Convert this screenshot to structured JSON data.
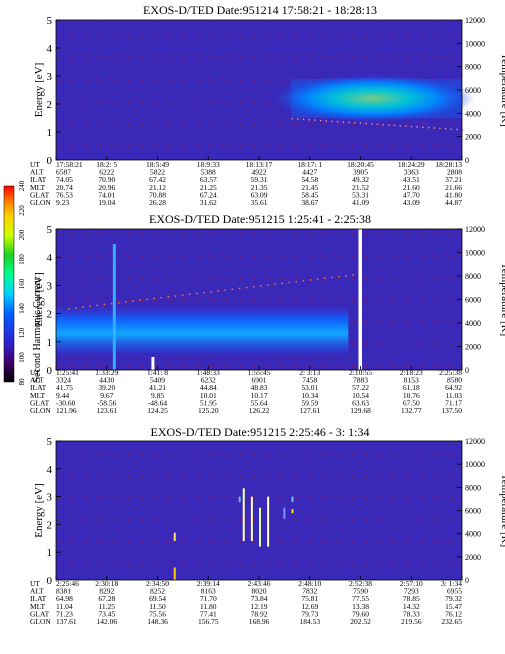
{
  "colorbar": {
    "label": "Second Harmonic Current",
    "ticks": [
      "80",
      "100",
      "120",
      "140",
      "160",
      "180",
      "200",
      "220",
      "240"
    ]
  },
  "chart_data": [
    {
      "type": "heatmap",
      "title": "EXOS-D/TED   Date:951214  17:58:21 - 18:28:13",
      "ylabel": "Energy [eV]",
      "ylabel_right": "Temperature [K]",
      "ylim": [
        0,
        5
      ],
      "y2lim": [
        0,
        12000
      ],
      "yticks": [
        "0",
        "1",
        "2",
        "3",
        "4",
        "5"
      ],
      "y2ticks": [
        "0",
        "2000",
        "4000",
        "6000",
        "8000",
        "10000",
        "12000"
      ],
      "rows": [
        {
          "label": "UT",
          "values": [
            "17:58:21",
            "18:2: 5",
            "18:5:49",
            "18:9:33",
            "18:13:17",
            "18:17: 1",
            "18:20:45",
            "18:24:29",
            "18:28:13"
          ]
        },
        {
          "label": "ALT",
          "values": [
            "6587",
            "6222",
            "5822",
            "5388",
            "4922",
            "4427",
            "3905",
            "3363",
            "2808"
          ]
        },
        {
          "label": "ILAT",
          "values": [
            "74.05",
            "70.90",
            "67.42",
            "63.57",
            "59.31",
            "54.58",
            "49.32",
            "43.51",
            "37.21"
          ]
        },
        {
          "label": "MLT",
          "values": [
            "20.74",
            "20.96",
            "21.12",
            "21.25",
            "21.35",
            "21.45",
            "21.52",
            "21.60",
            "21.66"
          ]
        },
        {
          "label": "GLAT",
          "values": [
            "76.53",
            "74.01",
            "70.88",
            "67.24",
            "63.09",
            "58.45",
            "53.31",
            "47.70",
            "41.80"
          ]
        },
        {
          "label": "GLON",
          "values": [
            "9.23",
            "19.04",
            "26.28",
            "31.62",
            "35.61",
            "38.67",
            "41.09",
            "43.09",
            "44.87"
          ]
        }
      ]
    },
    {
      "type": "heatmap",
      "title": "EXOS-D/TED   Date:951215   1:25:41 - 2:25:38",
      "ylabel": "Energy [eV]",
      "ylabel_right": "Temperature [K]",
      "ylim": [
        0,
        5
      ],
      "y2lim": [
        0,
        12000
      ],
      "yticks": [
        "0",
        "1",
        "2",
        "3",
        "4",
        "5"
      ],
      "y2ticks": [
        "0",
        "2000",
        "4000",
        "6000",
        "8000",
        "10000",
        "12000"
      ],
      "rows": [
        {
          "label": "UT",
          "values": [
            "1:25:41",
            "1:33:29",
            "1:41: 8",
            "1:48:33",
            "1:55:45",
            "2: 3:13",
            "2:10:55",
            "2:18:23",
            "2:25:38"
          ]
        },
        {
          "label": "ALT",
          "values": [
            "3324",
            "4430",
            "5409",
            "6232",
            "6901",
            "7458",
            "7883",
            "8153",
            "8580"
          ]
        },
        {
          "label": "ILAT",
          "values": [
            "41.75",
            "39.20",
            "41.21",
            "44.84",
            "48.83",
            "53.01",
            "57.22",
            "61.18",
            "64.92"
          ]
        },
        {
          "label": "MLT",
          "values": [
            "9.44",
            "9.67",
            "9.85",
            "10.01",
            "10.17",
            "10.34",
            "10.54",
            "10.76",
            "11.03"
          ]
        },
        {
          "label": "GLAT",
          "values": [
            "-30.60",
            "-58.56",
            "-48.64",
            "51.95",
            "55.64",
            "59.59",
            "63.63",
            "67.50",
            "71.17"
          ]
        },
        {
          "label": "GLON",
          "values": [
            "121.96",
            "123.61",
            "124.25",
            "125.20",
            "126.22",
            "127.61",
            "129.68",
            "132.77",
            "137.50"
          ]
        }
      ]
    },
    {
      "type": "heatmap",
      "title": "EXOS-D/TED   Date:951215   2:25:46 - 3: 1:34",
      "ylabel": "Energy [eV]",
      "ylabel_right": "Temperature [K]",
      "ylim": [
        0,
        5
      ],
      "y2lim": [
        0,
        12000
      ],
      "yticks": [
        "0",
        "1",
        "2",
        "3",
        "4",
        "5"
      ],
      "y2ticks": [
        "0",
        "2000",
        "4000",
        "6000",
        "8000",
        "10000",
        "12000"
      ],
      "rows": [
        {
          "label": "UT",
          "values": [
            "2:25:46",
            "2:30:18",
            "2:34:50",
            "2:39:14",
            "2:43:46",
            "2:48:10",
            "2:52:38",
            "2:57:10",
            "3: 1:34"
          ]
        },
        {
          "label": "ALT",
          "values": [
            "8381",
            "8292",
            "8252",
            "8163",
            "8020",
            "7832",
            "7590",
            "7293",
            "6955"
          ]
        },
        {
          "label": "ILAT",
          "values": [
            "64.98",
            "67.28",
            "69.54",
            "71.70",
            "73.84",
            "75.81",
            "77.55",
            "78.85",
            "79.32"
          ]
        },
        {
          "label": "MLT",
          "values": [
            "11.04",
            "11.25",
            "11.50",
            "11.80",
            "12.19",
            "12.69",
            "13.38",
            "14.32",
            "15.47"
          ]
        },
        {
          "label": "GLAT",
          "values": [
            "71.23",
            "73.45",
            "75.56",
            "77.41",
            "78.92",
            "79.73",
            "79.60",
            "78.33",
            "76.12"
          ]
        },
        {
          "label": "GLON",
          "values": [
            "137.61",
            "142.06",
            "148.36",
            "156.75",
            "168.96",
            "184.53",
            "202.52",
            "219.56",
            "232.65"
          ]
        }
      ]
    }
  ]
}
